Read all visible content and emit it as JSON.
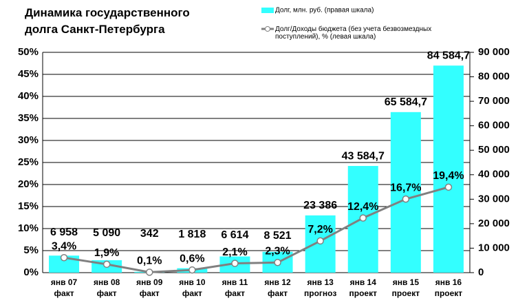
{
  "chart_data": {
    "type": "bar-line",
    "title": "Динамика государственного\nдолга Санкт-Петербурга",
    "categories": [
      "янв 07\nфакт",
      "янв 08\nфакт",
      "янв 09\nфакт",
      "янв 10\nфакт",
      "янв 11\nфакт",
      "янв 12\nфакт",
      "янв 13\nпрогноз",
      "янв 14\nпроект",
      "янв 15\nпроект",
      "янв 16\nпроект"
    ],
    "series": [
      {
        "name": "Долг, млн. руб. (правая шкала)",
        "type": "bar",
        "axis": "y2",
        "color": "#33ffff",
        "values": [
          6958,
          5090,
          342,
          1818,
          6614,
          8521,
          23386,
          43584.7,
          65584.7,
          84584.7
        ],
        "value_labels": [
          "6 958",
          "5 090",
          "342",
          "1 818",
          "6 614",
          "8 521",
          "23 386",
          "43 584,7",
          "65 584,7",
          "84 584,7"
        ]
      },
      {
        "name": "Долг/Доходы бюджета (без учета безвозмездных\nпоступлений),             % (левая шкала)",
        "type": "line",
        "axis": "y",
        "color": "#808080",
        "values": [
          3.4,
          1.9,
          0.1,
          0.6,
          2.1,
          2.3,
          7.2,
          12.4,
          16.7,
          19.4
        ],
        "value_labels": [
          "3,4%",
          "1,9%",
          "0,1%",
          "0,6%",
          "2,1%",
          "2,3%",
          "7,2%",
          "12,4%",
          "16,7%",
          "19,4%"
        ]
      }
    ],
    "ylim": [
      0,
      50
    ],
    "yticks": [
      {
        "value": 0,
        "label": "0%"
      },
      {
        "value": 5,
        "label": "5%"
      },
      {
        "value": 10,
        "label": "10%"
      },
      {
        "value": 15,
        "label": "15%"
      },
      {
        "value": 20,
        "label": "20%"
      },
      {
        "value": 25,
        "label": "25%"
      },
      {
        "value": 30,
        "label": "30%"
      },
      {
        "value": 35,
        "label": "35%"
      },
      {
        "value": 40,
        "label": "40%"
      },
      {
        "value": 45,
        "label": "45%"
      },
      {
        "value": 50,
        "label": "50%"
      }
    ],
    "y2lim": [
      0,
      90000
    ],
    "y2ticks": [
      0,
      {
        "value": 10000,
        "label": "10 000"
      },
      {
        "value": 20000,
        "label": "20 000"
      },
      {
        "value": 30000,
        "label": "30 000"
      },
      {
        "value": 40000,
        "label": "40 000"
      },
      {
        "value": 50000,
        "label": "50 000"
      },
      {
        "value": 60000,
        "label": "60 000"
      },
      {
        "value": 70000,
        "label": "70 000"
      },
      {
        "value": 80000,
        "label": "80 000"
      },
      {
        "value": 90000,
        "label": "90 000"
      }
    ],
    "grid": true
  }
}
